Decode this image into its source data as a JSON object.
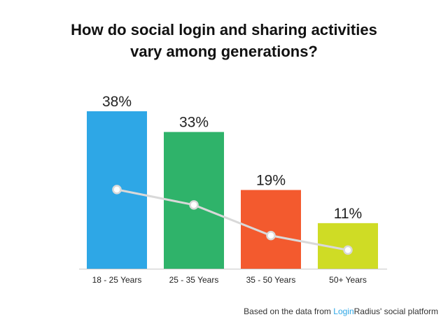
{
  "chart_data": {
    "type": "bar",
    "title_line1": "How do social login and sharing activities",
    "title_line2": "vary among generations?",
    "categories": [
      "18 - 25 Years",
      "25 - 35 Years",
      "35 - 50 Years",
      "50+ Years"
    ],
    "values": [
      38,
      33,
      19,
      11
    ],
    "value_labels": [
      "38%",
      "33%",
      "19%",
      "11%"
    ],
    "bar_colors": [
      "#2ea7e6",
      "#2fb36a",
      "#f35a2e",
      "#cfdc25"
    ],
    "trend_line_color": "#d9d9d9",
    "trend_values": [
      19.1,
      15.4,
      8.0,
      4.5
    ],
    "ylim": [
      0,
      38
    ],
    "grid": false,
    "legend": "none"
  },
  "footer": {
    "prefix": "Based on the data from ",
    "brand_login": "Login",
    "brand_radius": "Radius",
    "suffix": "' social platform",
    "brand_color": "#2ea7e6"
  }
}
